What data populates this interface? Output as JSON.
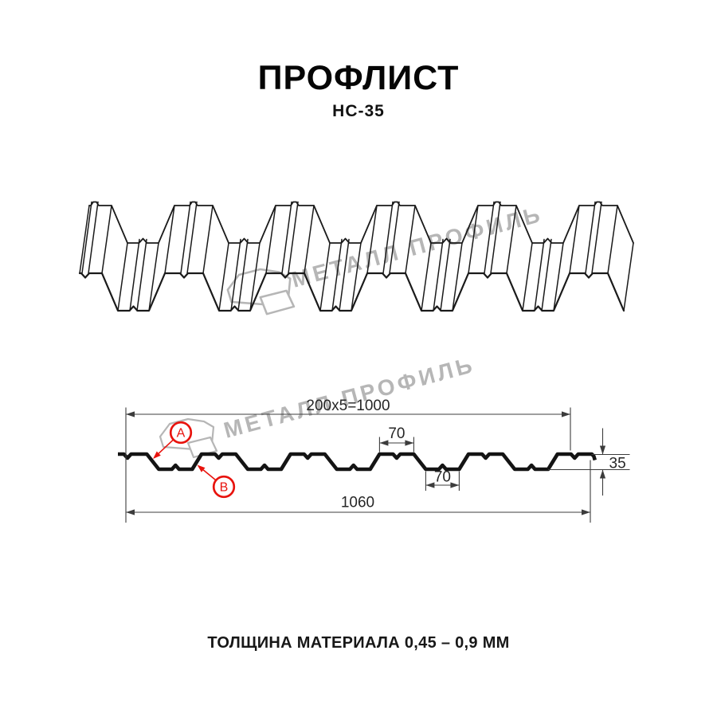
{
  "header": {
    "title": "ПРОФЛИСТ",
    "subtitle": "НС-35"
  },
  "watermark": {
    "brand": "МЕТАЛЛ ПРОФИЛЬ",
    "color": "#b6b6b6"
  },
  "section": {
    "dim_top": "200x5=1000",
    "dim_crest": "70",
    "dim_valley": "70",
    "dim_height": "35",
    "dim_overall": "1060",
    "callout_a": "A",
    "callout_b": "B",
    "callout_color": "#e8130d"
  },
  "footer": {
    "note": "ТОЛЩИНА МАТЕРИАЛА 0,45 – 0,9 ММ"
  }
}
